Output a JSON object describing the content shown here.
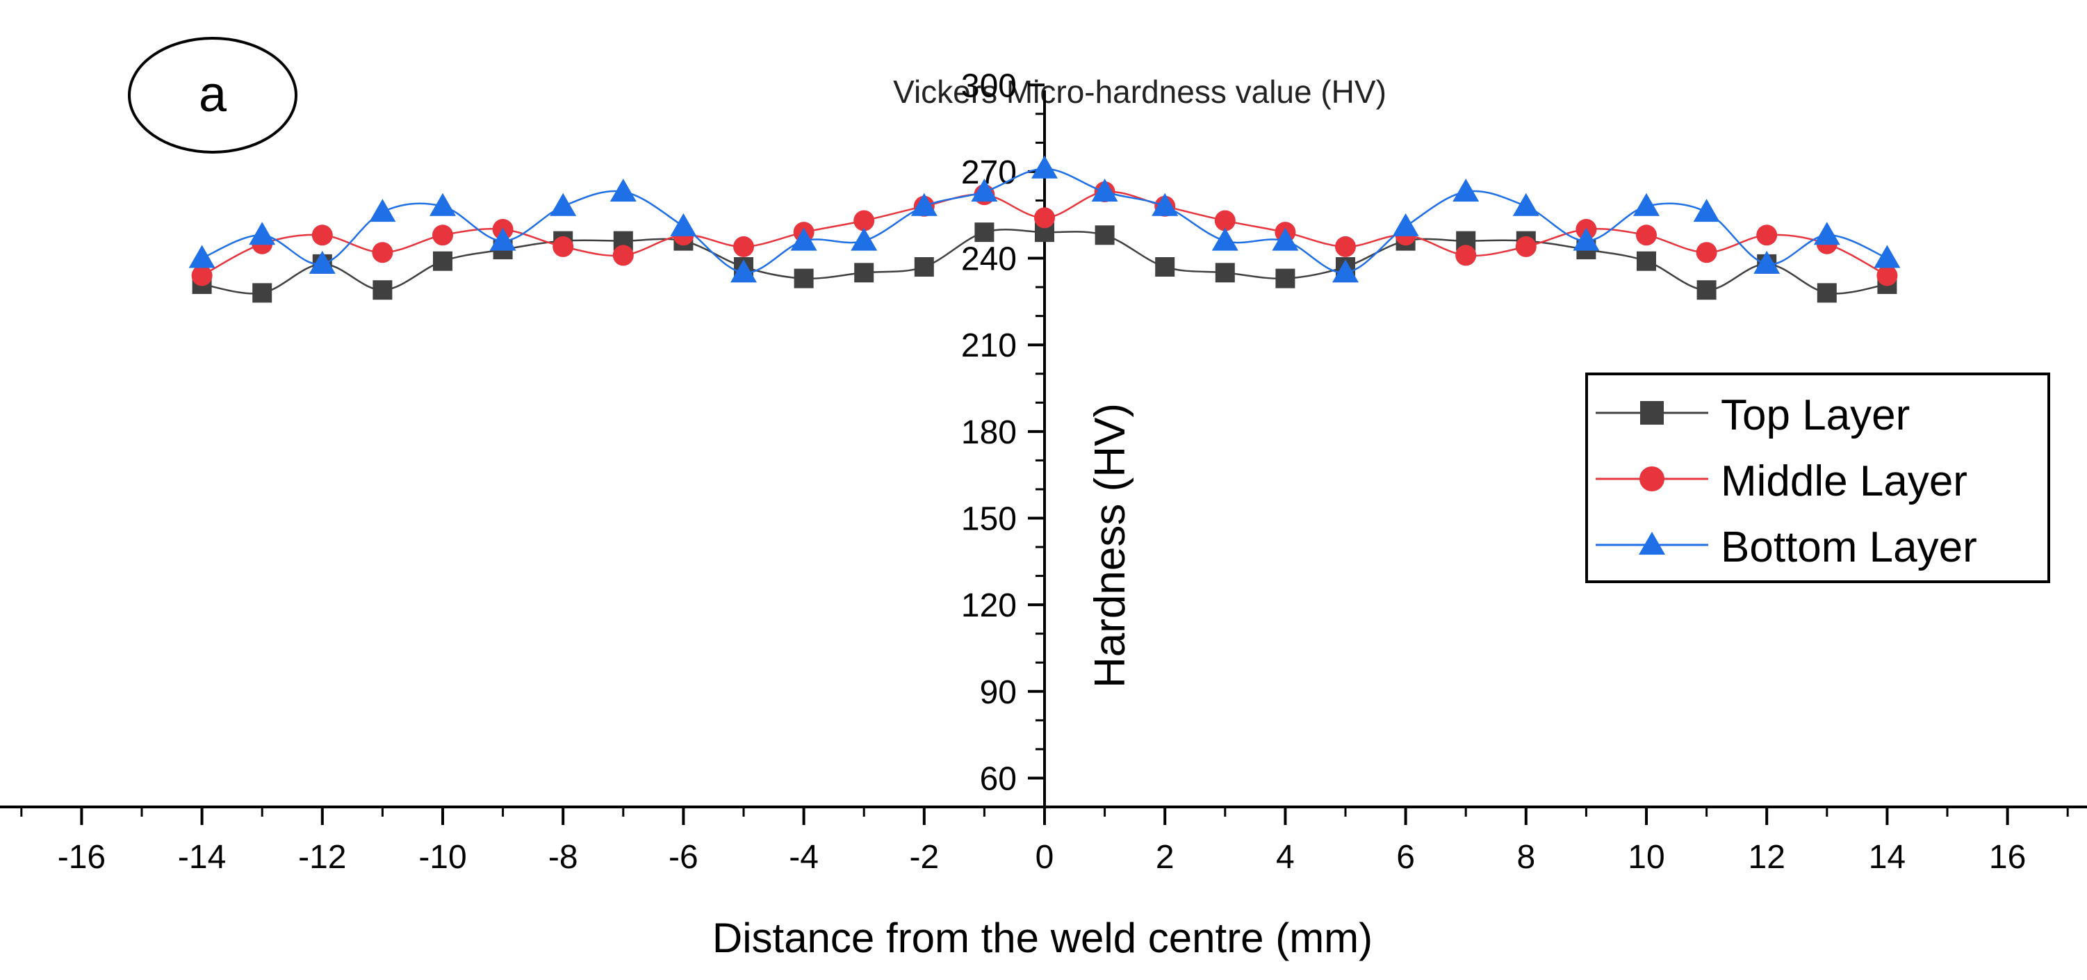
{
  "panel_label": "a",
  "chart_data": {
    "type": "line",
    "title": "Vickers Micro-hardness value (HV)",
    "xlabel": "Distance from the weld centre (mm)",
    "ylabel": "Hardness (HV)",
    "xlim": [
      -18,
      18
    ],
    "ylim": [
      50,
      300
    ],
    "x_ticks": [
      -16,
      -14,
      -12,
      -10,
      -8,
      -6,
      -4,
      -2,
      0,
      2,
      4,
      6,
      8,
      10,
      12,
      14,
      16
    ],
    "y_ticks": [
      60,
      90,
      120,
      150,
      180,
      210,
      240,
      270,
      300
    ],
    "grid": false,
    "legend_position": "right",
    "x": [
      -14,
      -13,
      -12,
      -11,
      -10,
      -9,
      -8,
      -7,
      -6,
      -5,
      -4,
      -3,
      -2,
      -1,
      0,
      1,
      2,
      3,
      4,
      5,
      6,
      7,
      8,
      9,
      10,
      11,
      12,
      13,
      14
    ],
    "series": [
      {
        "name": "Top Layer",
        "color": "#404040",
        "marker": "square",
        "values": [
          231,
          228,
          238,
          229,
          239,
          243,
          246,
          246,
          246,
          237,
          233,
          235,
          237,
          249,
          249,
          248,
          237,
          235,
          233,
          237,
          246,
          246,
          246,
          243,
          239,
          229,
          238,
          228,
          231
        ]
      },
      {
        "name": "Middle Layer",
        "color": "#e8343c",
        "marker": "circle",
        "values": [
          234,
          245,
          248,
          242,
          248,
          250,
          244,
          241,
          248,
          244,
          249,
          253,
          258,
          262,
          254,
          263,
          258,
          253,
          249,
          244,
          248,
          241,
          244,
          250,
          248,
          242,
          248,
          245,
          234
        ]
      },
      {
        "name": "Bottom Layer",
        "color": "#1f6fe6",
        "marker": "triangle",
        "values": [
          240,
          248,
          238,
          256,
          258,
          246,
          258,
          263,
          251,
          235,
          246,
          246,
          258,
          263,
          271,
          263,
          258,
          246,
          246,
          235,
          251,
          263,
          258,
          246,
          258,
          256,
          238,
          248,
          240
        ]
      }
    ]
  }
}
